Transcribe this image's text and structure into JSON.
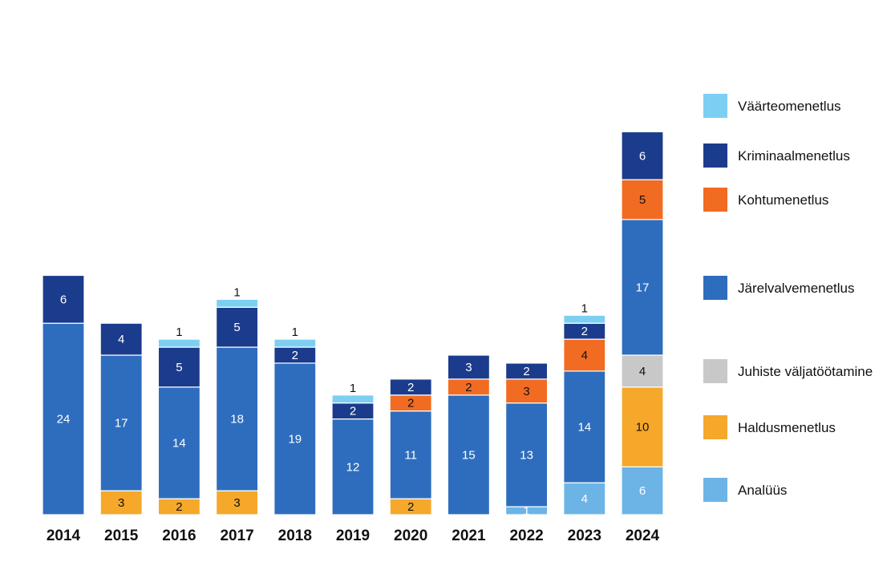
{
  "chart_data": {
    "type": "bar",
    "stacked": true,
    "categories": [
      "2014",
      "2015",
      "2016",
      "2017",
      "2018",
      "2019",
      "2020",
      "2021",
      "2022",
      "2023",
      "2024"
    ],
    "series": [
      {
        "name": "Analüüs",
        "color": "#6CB4E6",
        "values": [
          0,
          0,
          0,
          0,
          0,
          0,
          0,
          0,
          1,
          4,
          6
        ]
      },
      {
        "name": "Haldusmenetlus",
        "color": "#F5A82A",
        "values": [
          0,
          3,
          2,
          3,
          0,
          0,
          2,
          0,
          0,
          0,
          10
        ]
      },
      {
        "name": "Juhiste väljatöötamine",
        "color": "#C8C8C8",
        "values": [
          0,
          0,
          0,
          0,
          0,
          0,
          0,
          0,
          0,
          0,
          4
        ]
      },
      {
        "name": "Järelvalvemenetlus",
        "color": "#2E6DBE",
        "values": [
          24,
          17,
          14,
          18,
          19,
          12,
          11,
          15,
          13,
          14,
          17
        ]
      },
      {
        "name": "Kohtumenetlus",
        "color": "#F26B22",
        "values": [
          0,
          0,
          0,
          0,
          0,
          0,
          2,
          2,
          3,
          4,
          5
        ]
      },
      {
        "name": "Kriminaalmenetlus",
        "color": "#1B3C8C",
        "values": [
          6,
          4,
          5,
          5,
          2,
          2,
          2,
          3,
          2,
          2,
          6
        ]
      },
      {
        "name": "Väärteomenetlus",
        "color": "#7DCFF2",
        "values": [
          0,
          0,
          1,
          1,
          1,
          1,
          0,
          0,
          0,
          1,
          0
        ]
      }
    ],
    "legend_order": [
      "Väärteomenetlus",
      "Kriminaalmenetlus",
      "Kohtumenetlus",
      "Järelvalvemenetlus",
      "Juhiste väljatöötamine",
      "Haldusmenetlus",
      "Analüüs"
    ],
    "legend_position": "right",
    "ylim": [
      0,
      48
    ],
    "grid": false,
    "title": "",
    "xlabel": "",
    "ylabel": ""
  }
}
